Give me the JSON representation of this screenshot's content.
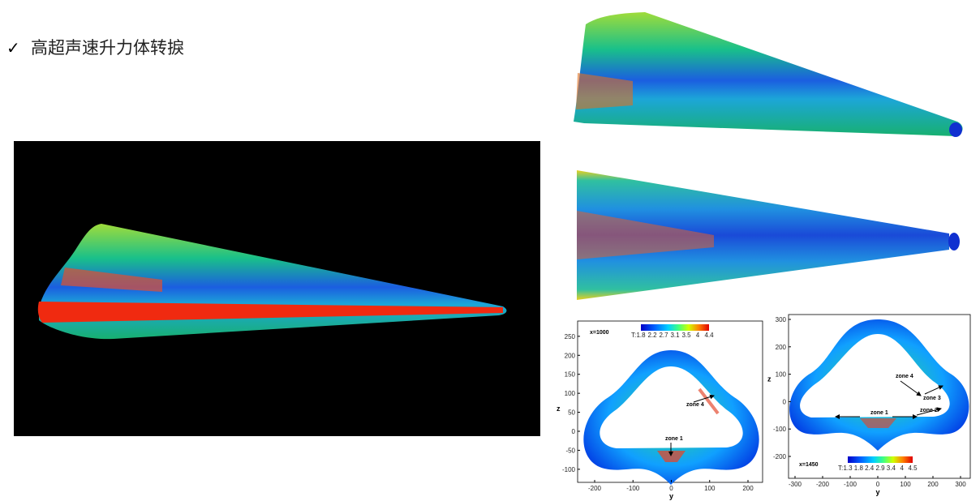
{
  "slide": {
    "bullet": "✓",
    "title": "高超声速升力体转捩",
    "plots": [
      {
        "station": "x=1000",
        "colorbar_label": "T:",
        "colorbar_ticks": [
          1.8,
          2.2,
          2.7,
          3.1,
          3.5,
          4.0,
          4.4
        ],
        "xlabel": "y",
        "ylabel": "z",
        "xticks": [
          -200,
          -100,
          0,
          100,
          200
        ],
        "yticks": [
          250,
          200,
          150,
          100,
          50,
          0,
          -50,
          -100
        ],
        "zones": [
          "zone 4",
          "zone 1"
        ]
      },
      {
        "station": "x=1450",
        "colorbar_label": "T:",
        "colorbar_ticks": [
          1.3,
          1.8,
          2.4,
          2.9,
          3.4,
          4.0,
          4.5
        ],
        "xlabel": "y",
        "ylabel": "z",
        "xticks": [
          -300,
          -200,
          -100,
          0,
          100,
          200,
          300
        ],
        "yticks": [
          300,
          200,
          100,
          0,
          -100,
          -200
        ],
        "zones": [
          "zone 4",
          "zone 3",
          "zone 2",
          "zone 1"
        ]
      }
    ]
  }
}
